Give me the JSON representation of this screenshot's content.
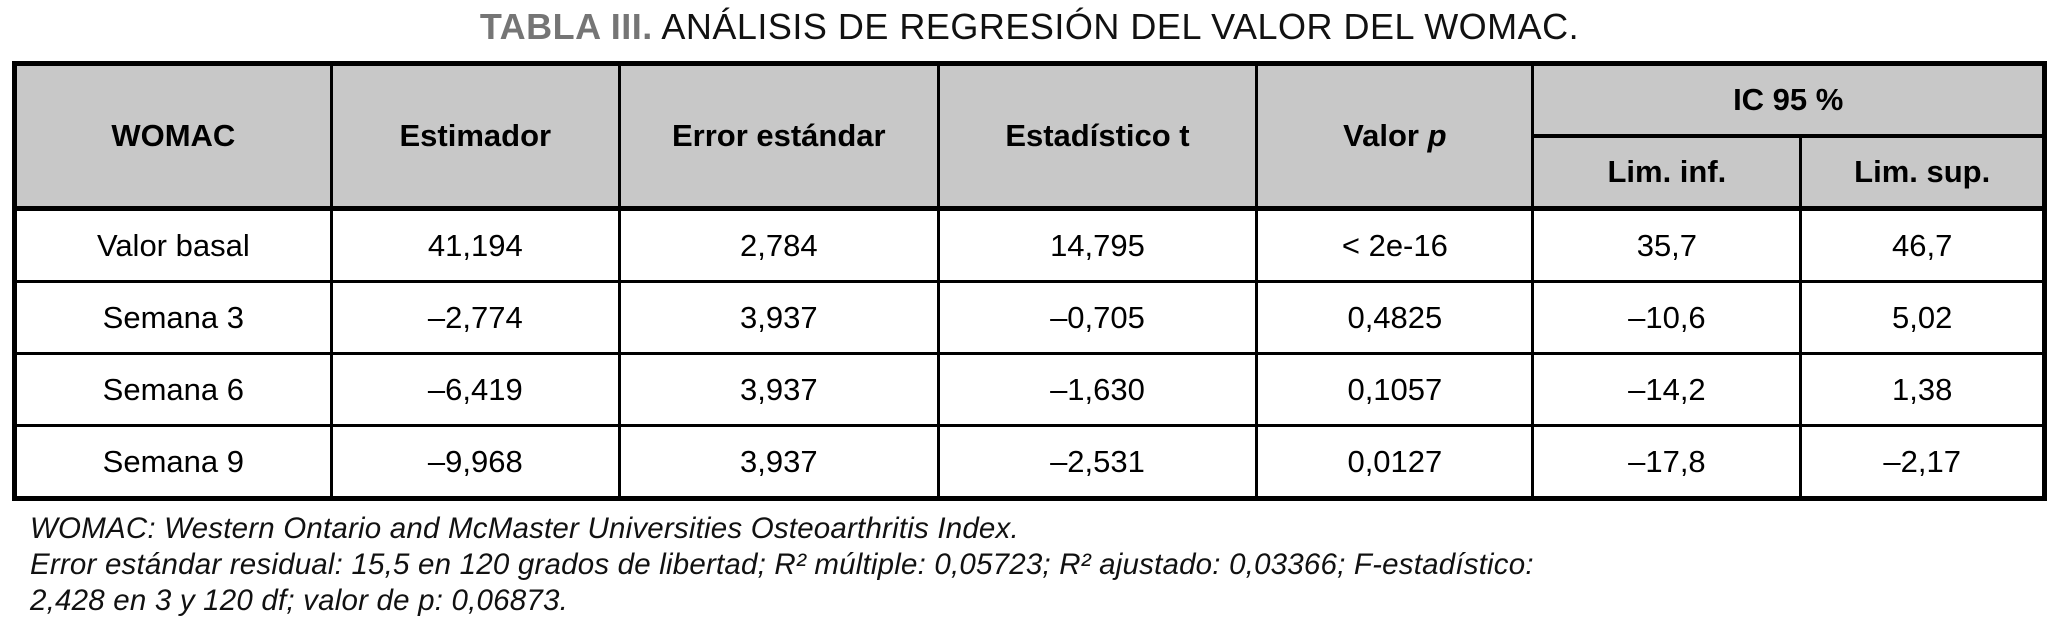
{
  "title": {
    "label": "TABLA III.",
    "text": "ANÁLISIS DE REGRESIÓN DEL VALOR DEL WOMAC."
  },
  "colors": {
    "header_bg": "#c8c8c8",
    "title_accent": "#757575",
    "border": "#000000"
  },
  "chart_data": {
    "type": "table",
    "title": "TABLA III. ANÁLISIS DE REGRESIÓN DEL VALOR DEL WOMAC.",
    "columns": [
      "WOMAC",
      "Estimador",
      "Error estándar",
      "Estadístico t",
      "Valor p",
      "IC 95 % Lim. inf.",
      "IC 95 % Lim. sup."
    ],
    "rows": [
      [
        "Valor basal",
        "41,194",
        "2,784",
        "14,795",
        "< 2e-16",
        "35,7",
        "46,7"
      ],
      [
        "Semana 3",
        "–2,774",
        "3,937",
        "–0,705",
        "0,4825",
        "–10,6",
        "5,02"
      ],
      [
        "Semana 6",
        "–6,419",
        "3,937",
        "–1,630",
        "0,1057",
        "–14,2",
        "1,38"
      ],
      [
        "Semana 9",
        "–9,968",
        "3,937",
        "–2,531",
        "0,0127",
        "–17,8",
        "–2,17"
      ]
    ]
  },
  "table": {
    "headers": {
      "womac": "WOMAC",
      "estimador": "Estimador",
      "error_estandar": "Error estándar",
      "estadistico_t": "Estadístico t",
      "valor_p_prefix": "Valor",
      "valor_p_symbol": "p",
      "ic_group": "IC 95 %",
      "lim_inf": "Lim. inf.",
      "lim_sup": "Lim. sup."
    },
    "rows": [
      [
        "Valor basal",
        "41,194",
        "2,784",
        "14,795",
        "< 2e-16",
        "35,7",
        "46,7"
      ],
      [
        "Semana 3",
        "–2,774",
        "3,937",
        "–0,705",
        "0,4825",
        "–10,6",
        "5,02"
      ],
      [
        "Semana 6",
        "–6,419",
        "3,937",
        "–1,630",
        "0,1057",
        "–14,2",
        "1,38"
      ],
      [
        "Semana 9",
        "–9,968",
        "3,937",
        "–2,531",
        "0,0127",
        "–17,8",
        "–2,17"
      ]
    ]
  },
  "footnotes": [
    "WOMAC: Western Ontario and McMaster Universities Osteoarthritis Index.",
    "Error estándar residual: 15,5 en 120 grados de libertad; R² múltiple: 0,05723; R² ajustado: 0,03366; F-estadístico:",
    "2,428 en 3 y 120 df; valor de p: 0,06873."
  ]
}
